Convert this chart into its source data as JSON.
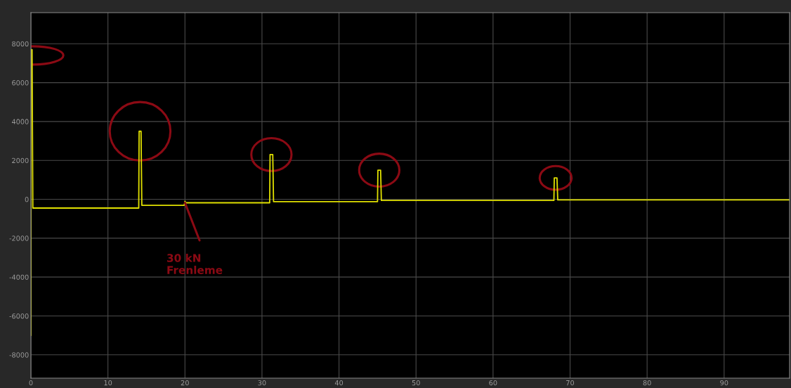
{
  "chart_data": {
    "type": "line",
    "x": [
      0,
      0,
      0.15,
      0.25,
      14.0,
      14.05,
      14.3,
      14.4,
      19.9,
      20.0,
      20.1,
      31.0,
      31.05,
      31.4,
      31.5,
      45.0,
      45.05,
      45.4,
      45.5,
      67.9,
      67.95,
      68.3,
      68.4,
      98.5
    ],
    "series": [
      {
        "color": "#e0e000",
        "values": [
          -7000,
          7700,
          7700,
          -450,
          -450,
          3500,
          3500,
          -310,
          -310,
          -100,
          -180,
          -180,
          2300,
          2300,
          -120,
          -120,
          1500,
          1500,
          -60,
          -60,
          1100,
          1100,
          -30,
          -30
        ]
      }
    ],
    "xlim": [
      0,
      98.5
    ],
    "xticks": [
      0,
      10,
      20,
      30,
      40,
      50,
      60,
      70,
      80,
      90
    ],
    "ylim": [
      -9200,
      9600
    ],
    "yticks": [
      -8000,
      -6000,
      -4000,
      -2000,
      0,
      2000,
      4000,
      6000,
      8000
    ],
    "grid": true,
    "legend": false,
    "annotations": [
      {
        "text": "30 kN\nFrenleme",
        "x": 20,
        "y": -180
      }
    ]
  }
}
